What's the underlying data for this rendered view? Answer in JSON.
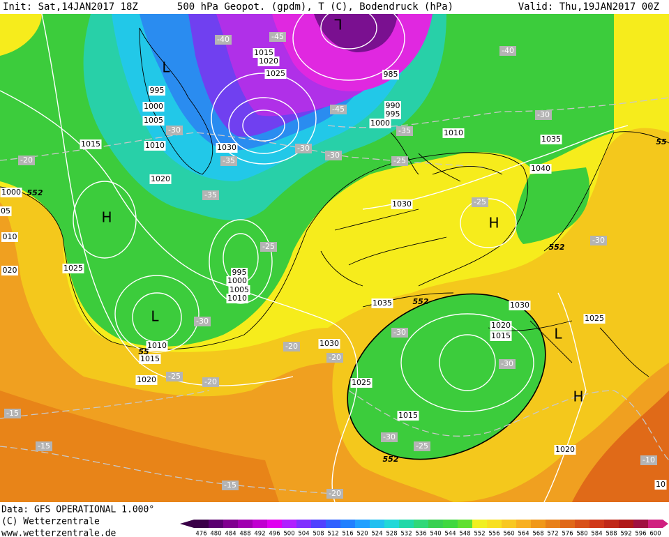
{
  "header": {
    "init": "Init: Sat,14JAN2017 18Z",
    "title": "500 hPa Geopot. (gpdm), T (C), Bodendruck (hPa)",
    "valid": "Valid: Thu,19JAN2017 00Z"
  },
  "map": {
    "pressure_labels": [
      "1015",
      "1020",
      "1025",
      "995",
      "1000",
      "1005",
      "1015",
      "1010",
      "1030",
      "1020",
      "1000",
      "05",
      "010",
      "020",
      "1025",
      "985",
      "990",
      "995",
      "1000",
      "1010",
      "1035",
      "1040",
      "1030",
      "1035",
      "1030",
      "1020",
      "1015",
      "1025",
      "1030",
      "1010",
      "1015",
      "1020",
      "1025",
      "1015",
      "1020",
      "10",
      "995",
      "1000",
      "1005",
      "1010"
    ],
    "temperature_labels": [
      "-40",
      "-45",
      "-40",
      "-30",
      "-45",
      "-35",
      "-30",
      "-30",
      "-30",
      "-35",
      "-25",
      "-20",
      "-35",
      "-25",
      "-25",
      "-30",
      "-30",
      "-30",
      "-20",
      "-20",
      "-30",
      "-25",
      "-20",
      "-15",
      "-15",
      "-30",
      "-25",
      "-10",
      "-15",
      "-20"
    ],
    "height_labels": [
      "552",
      "552",
      "552",
      "552",
      "55",
      "55"
    ],
    "centers": [
      "L",
      "H",
      "L",
      "H",
      "L",
      "H",
      "L"
    ]
  },
  "footer": {
    "data": "Data: GFS OPERATIONAL 1.000°",
    "copyright": "(C) Wetterzentrale",
    "url": "www.wetterzentrale.de"
  },
  "colorbar": {
    "ticks": [
      476,
      480,
      484,
      488,
      492,
      496,
      500,
      504,
      508,
      512,
      516,
      520,
      524,
      528,
      532,
      536,
      540,
      544,
      548,
      552,
      556,
      560,
      564,
      568,
      572,
      576,
      580,
      584,
      588,
      592,
      596,
      600
    ]
  }
}
